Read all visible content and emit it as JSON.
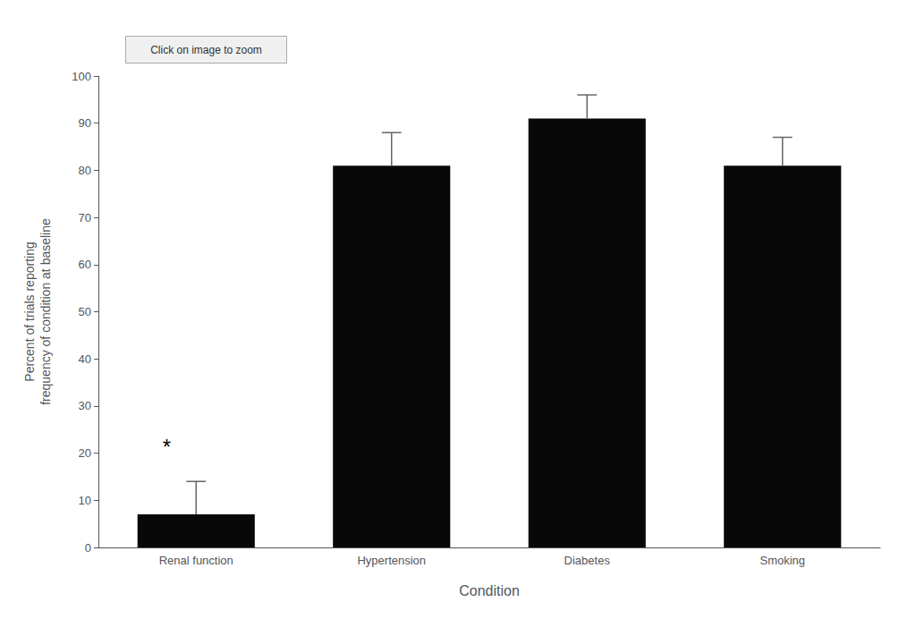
{
  "chart_data": {
    "type": "bar",
    "categories": [
      "Renal function",
      "Hypertension",
      "Diabetes",
      "Smoking"
    ],
    "values": [
      7,
      81,
      91,
      81
    ],
    "error_upper": [
      7,
      7,
      5,
      6
    ],
    "color": "#080808",
    "xlabel": "Condition",
    "ylabel": "Percent of trials reporting\nfrequency of condition at baseline",
    "ylim": [
      0,
      100
    ],
    "yticks": [
      0,
      10,
      20,
      30,
      40,
      50,
      60,
      70,
      80,
      90,
      100
    ],
    "grid": false,
    "annotations": [
      {
        "text": "*",
        "x": "Renal function",
        "y": 19
      },
      {
        "text": "Click on image to zoom"
      }
    ]
  }
}
